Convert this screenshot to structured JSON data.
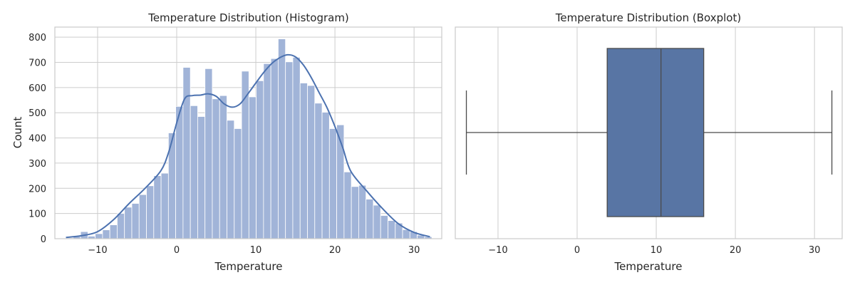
{
  "chart_data": [
    {
      "type": "histogram",
      "title": "Temperature Distribution (Histogram)",
      "xlabel": "Temperature",
      "ylabel": "Count",
      "xlim": [
        -15.4,
        33.5
      ],
      "ylim": [
        0,
        840
      ],
      "xticks": [
        -10,
        0,
        10,
        20,
        30
      ],
      "yticks": [
        0,
        100,
        200,
        300,
        400,
        500,
        600,
        700,
        800
      ],
      "xtick_labels": [
        "−10",
        "0",
        "10",
        "20",
        "30"
      ],
      "ytick_labels": [
        "0",
        "100",
        "200",
        "300",
        "400",
        "500",
        "600",
        "700",
        "800"
      ],
      "grid": true,
      "bar_color": "#a1b4d8",
      "kde_color": "#4c72b0",
      "bins": {
        "start": -14.0,
        "width": 0.925,
        "counts": [
          3,
          8,
          28,
          10,
          20,
          35,
          55,
          100,
          125,
          140,
          175,
          210,
          250,
          260,
          420,
          525,
          680,
          528,
          485,
          675,
          555,
          568,
          470,
          437,
          665,
          563,
          627,
          695,
          715,
          793,
          702,
          720,
          618,
          608,
          538,
          502,
          437,
          452,
          265,
          207,
          212,
          157,
          133,
          92,
          72,
          62,
          36,
          28,
          14,
          8
        ]
      },
      "kde": {
        "x": [
          -14,
          -12,
          -10,
          -8,
          -6,
          -4,
          -2,
          -1,
          0,
          1,
          2,
          3,
          4,
          5,
          6,
          7,
          8,
          9,
          10,
          11,
          12,
          13,
          14,
          15,
          16,
          17,
          18,
          19,
          20,
          21,
          22,
          24,
          26,
          28,
          30,
          32
        ],
        "y": [
          5,
          12,
          28,
          75,
          140,
          200,
          270,
          345,
          460,
          555,
          568,
          570,
          575,
          565,
          535,
          522,
          535,
          575,
          618,
          660,
          695,
          718,
          730,
          722,
          690,
          640,
          580,
          520,
          445,
          360,
          268,
          190,
          120,
          60,
          25,
          8
        ]
      }
    },
    {
      "type": "boxplot",
      "title": "Temperature Distribution (Boxplot)",
      "xlabel": "Temperature",
      "xlim": [
        -15.4,
        33.5
      ],
      "xticks": [
        -10,
        0,
        10,
        20,
        30
      ],
      "xtick_labels": [
        "−10",
        "0",
        "10",
        "20",
        "30"
      ],
      "grid": true,
      "box_color": "#5875a4",
      "line_color": "#4a4a4a",
      "min": -14.0,
      "q1": 3.8,
      "median": 10.6,
      "q3": 16.0,
      "max": 32.2
    }
  ]
}
